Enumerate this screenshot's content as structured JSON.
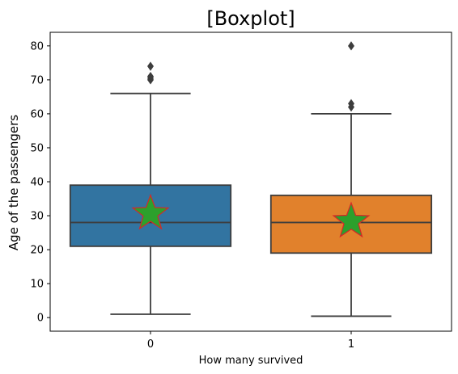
{
  "chart_data": {
    "type": "boxplot",
    "title": "[Boxplot]",
    "xlabel": "How many survived",
    "ylabel": "Age of the passengers",
    "categories": [
      "0",
      "1"
    ],
    "ylim": [
      -4,
      84
    ],
    "yticks": [
      0,
      10,
      20,
      30,
      40,
      50,
      60,
      70,
      80
    ],
    "grid": false,
    "boxes": [
      {
        "category": "0",
        "color": "#3274a1",
        "whisker_low": 1,
        "q1": 21,
        "median": 28,
        "q3": 39,
        "whisker_high": 66,
        "mean": 30.6,
        "outliers": [
          70,
          70.5,
          71,
          74
        ]
      },
      {
        "category": "1",
        "color": "#e1812c",
        "whisker_low": 0.42,
        "q1": 19,
        "median": 28,
        "q3": 36,
        "whisker_high": 60,
        "mean": 28.3,
        "outliers": [
          62,
          63,
          80
        ]
      }
    ],
    "mean_marker": {
      "shape": "star",
      "fill": "#2ca02c",
      "edge": "#d62728"
    },
    "line_color": "#3d3d3d"
  }
}
